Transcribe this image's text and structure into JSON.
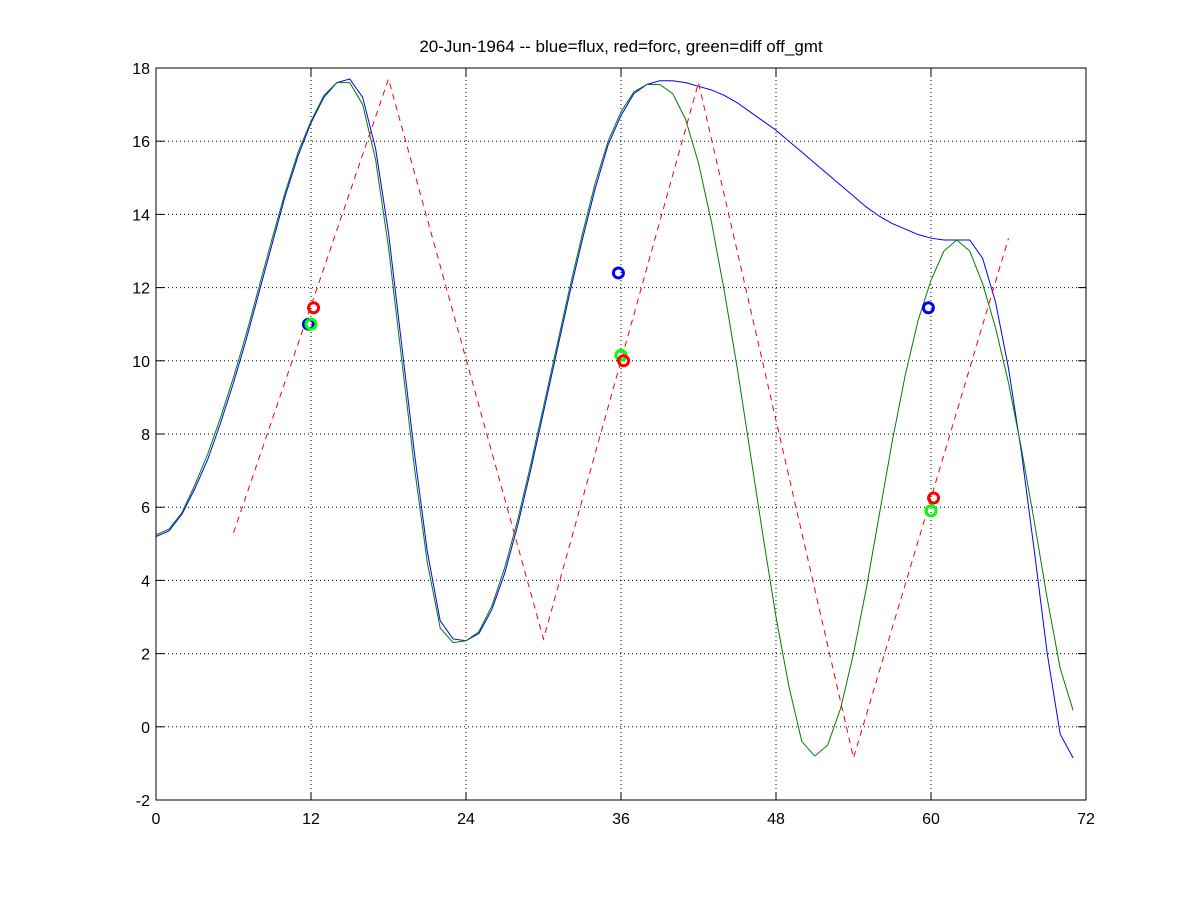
{
  "chart_data": {
    "type": "line",
    "title": "20-Jun-1964 -- blue=flux, red=forc, green=diff off_gmt",
    "xlabel": "",
    "ylabel": "",
    "xlim": [
      0,
      72
    ],
    "ylim": [
      -2,
      18
    ],
    "xticks": [
      0,
      12,
      24,
      36,
      48,
      60,
      72
    ],
    "yticks": [
      -2,
      0,
      2,
      4,
      6,
      8,
      10,
      12,
      14,
      16,
      18
    ],
    "grid": true,
    "legend": "none",
    "series": [
      {
        "color": "#0000ff",
        "style": "solid",
        "points": [
          [
            0,
            5.2
          ],
          [
            1,
            5.35
          ],
          [
            2,
            5.8
          ],
          [
            3,
            6.5
          ],
          [
            4,
            7.3
          ],
          [
            5,
            8.3
          ],
          [
            6,
            9.4
          ],
          [
            7,
            10.6
          ],
          [
            8,
            11.9
          ],
          [
            9,
            13.2
          ],
          [
            10,
            14.5
          ],
          [
            11,
            15.6
          ],
          [
            12,
            16.5
          ],
          [
            13,
            17.2
          ],
          [
            14,
            17.6
          ],
          [
            15,
            17.7
          ],
          [
            16,
            17.2
          ],
          [
            17,
            15.8
          ],
          [
            18,
            13.5
          ],
          [
            19,
            10.5
          ],
          [
            20,
            7.5
          ],
          [
            21,
            4.8
          ],
          [
            22,
            2.9
          ],
          [
            23,
            2.4
          ],
          [
            24,
            2.35
          ],
          [
            25,
            2.55
          ],
          [
            26,
            3.2
          ],
          [
            27,
            4.2
          ],
          [
            28,
            5.5
          ],
          [
            29,
            7.0
          ],
          [
            30,
            8.6
          ],
          [
            31,
            10.2
          ],
          [
            32,
            11.8
          ],
          [
            33,
            13.3
          ],
          [
            34,
            14.7
          ],
          [
            35,
            15.9
          ],
          [
            36,
            16.7
          ],
          [
            37,
            17.3
          ],
          [
            38,
            17.55
          ],
          [
            39,
            17.65
          ],
          [
            40,
            17.65
          ],
          [
            41,
            17.6
          ],
          [
            42,
            17.5
          ],
          [
            43,
            17.4
          ],
          [
            44,
            17.25
          ],
          [
            45,
            17.05
          ],
          [
            46,
            16.8
          ],
          [
            47,
            16.55
          ],
          [
            48,
            16.3
          ],
          [
            49,
            16.0
          ],
          [
            50,
            15.7
          ],
          [
            51,
            15.4
          ],
          [
            52,
            15.1
          ],
          [
            53,
            14.8
          ],
          [
            54,
            14.5
          ],
          [
            55,
            14.2
          ],
          [
            56,
            13.95
          ],
          [
            57,
            13.75
          ],
          [
            58,
            13.6
          ],
          [
            59,
            13.45
          ],
          [
            60,
            13.35
          ],
          [
            61,
            13.3
          ],
          [
            62,
            13.3
          ],
          [
            63,
            13.3
          ],
          [
            64,
            12.8
          ],
          [
            65,
            11.6
          ],
          [
            66,
            9.8
          ],
          [
            67,
            7.5
          ],
          [
            68,
            4.8
          ],
          [
            69,
            2.0
          ],
          [
            70,
            -0.2
          ],
          [
            71,
            -0.85
          ]
        ]
      },
      {
        "color": "#007f00",
        "style": "solid",
        "points": [
          [
            0,
            5.25
          ],
          [
            1,
            5.4
          ],
          [
            2,
            5.85
          ],
          [
            3,
            6.6
          ],
          [
            4,
            7.45
          ],
          [
            5,
            8.45
          ],
          [
            6,
            9.55
          ],
          [
            7,
            10.75
          ],
          [
            8,
            12.05
          ],
          [
            9,
            13.35
          ],
          [
            10,
            14.6
          ],
          [
            11,
            15.7
          ],
          [
            12,
            16.55
          ],
          [
            13,
            17.25
          ],
          [
            14,
            17.6
          ],
          [
            15,
            17.6
          ],
          [
            16,
            17.0
          ],
          [
            17,
            15.5
          ],
          [
            18,
            13.1
          ],
          [
            19,
            10.1
          ],
          [
            20,
            7.1
          ],
          [
            21,
            4.5
          ],
          [
            22,
            2.7
          ],
          [
            23,
            2.3
          ],
          [
            24,
            2.35
          ],
          [
            25,
            2.6
          ],
          [
            26,
            3.3
          ],
          [
            27,
            4.35
          ],
          [
            28,
            5.65
          ],
          [
            29,
            7.15
          ],
          [
            30,
            8.75
          ],
          [
            31,
            10.35
          ],
          [
            32,
            11.95
          ],
          [
            33,
            13.45
          ],
          [
            34,
            14.85
          ],
          [
            35,
            16.0
          ],
          [
            36,
            16.8
          ],
          [
            37,
            17.35
          ],
          [
            38,
            17.55
          ],
          [
            39,
            17.55
          ],
          [
            40,
            17.3
          ],
          [
            41,
            16.6
          ],
          [
            42,
            15.4
          ],
          [
            43,
            13.8
          ],
          [
            44,
            11.9
          ],
          [
            45,
            9.8
          ],
          [
            46,
            7.5
          ],
          [
            47,
            5.2
          ],
          [
            48,
            3.0
          ],
          [
            49,
            1.1
          ],
          [
            50,
            -0.4
          ],
          [
            51,
            -0.8
          ],
          [
            52,
            -0.5
          ],
          [
            53,
            0.5
          ],
          [
            54,
            2.0
          ],
          [
            55,
            3.8
          ],
          [
            56,
            5.8
          ],
          [
            57,
            7.8
          ],
          [
            58,
            9.6
          ],
          [
            59,
            11.1
          ],
          [
            60,
            12.2
          ],
          [
            61,
            13.0
          ],
          [
            62,
            13.3
          ],
          [
            63,
            13.0
          ],
          [
            64,
            12.1
          ],
          [
            65,
            10.9
          ],
          [
            66,
            9.4
          ],
          [
            67,
            7.6
          ],
          [
            68,
            5.6
          ],
          [
            69,
            3.5
          ],
          [
            70,
            1.6
          ],
          [
            71,
            0.45
          ]
        ]
      },
      {
        "color": "#ff0000",
        "style": "dashed",
        "points": [
          [
            6,
            5.3
          ],
          [
            18,
            17.7
          ],
          [
            30,
            2.4
          ],
          [
            42,
            17.6
          ],
          [
            54,
            -0.85
          ],
          [
            66,
            13.35
          ]
        ]
      }
    ],
    "markers": [
      {
        "color": "#0000ff",
        "x": 11.8,
        "y": 11.0
      },
      {
        "color": "#00ff00",
        "x": 12.0,
        "y": 11.0
      },
      {
        "color": "#ff0000",
        "x": 12.2,
        "y": 11.45
      },
      {
        "color": "#0000ff",
        "x": 35.8,
        "y": 12.4
      },
      {
        "color": "#00ff00",
        "x": 36.0,
        "y": 10.15
      },
      {
        "color": "#ff0000",
        "x": 36.2,
        "y": 10.0
      },
      {
        "color": "#0000ff",
        "x": 59.8,
        "y": 11.45
      },
      {
        "color": "#00ff00",
        "x": 60.0,
        "y": 5.9
      },
      {
        "color": "#ff0000",
        "x": 60.2,
        "y": 6.25
      }
    ]
  }
}
